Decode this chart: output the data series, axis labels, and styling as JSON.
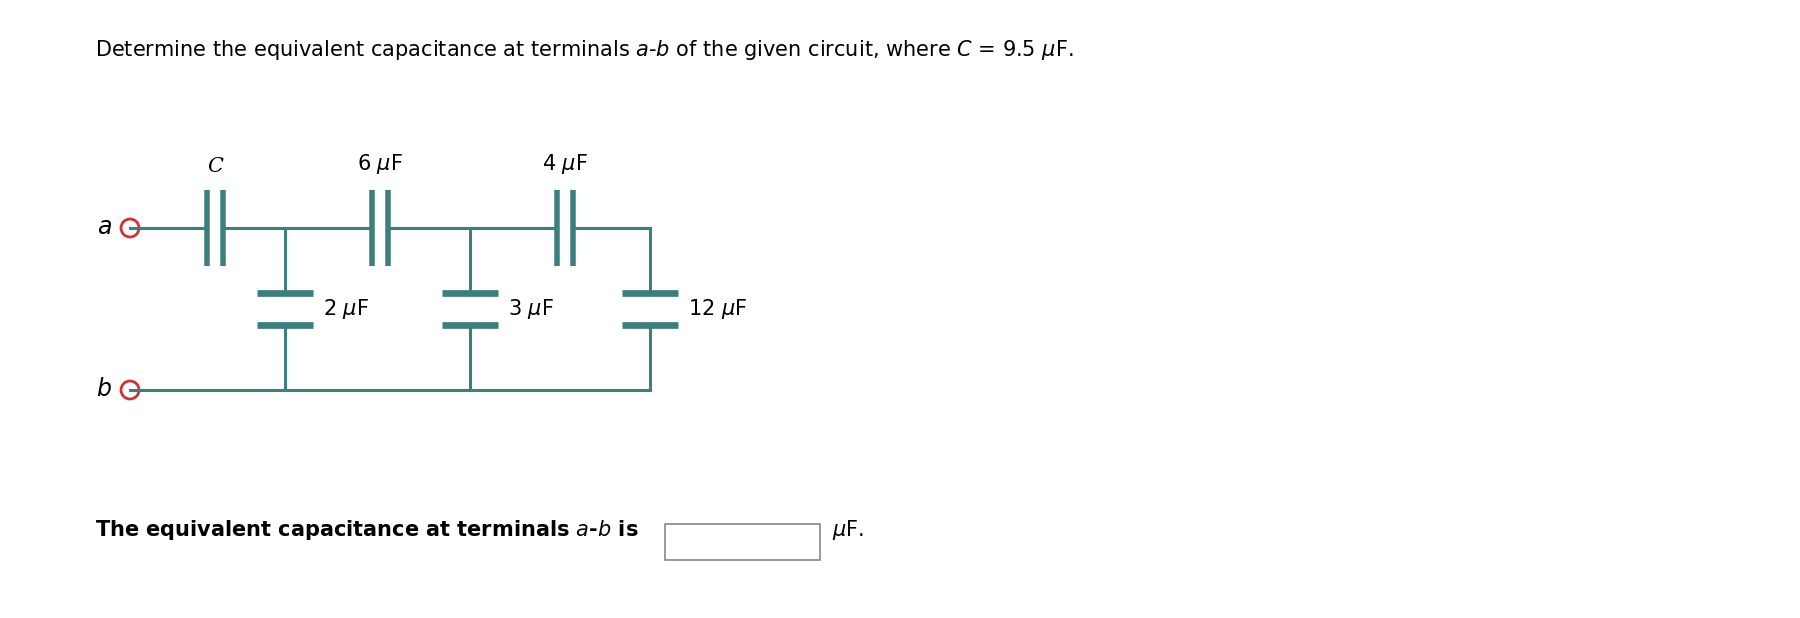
{
  "bg_color": "#ffffff",
  "circuit_color": "#3d7f7f",
  "circle_color": "#cc3333",
  "title_line": "Determine the equivalent capacitance at terminals $a$-$b$ of the given circuit, where $C$ = 9.5 $\\mu$F.",
  "bottom_text": "The equivalent capacitance at terminals $a$-$b$ is",
  "bottom_unit": "$\\mu$F.",
  "label_C": "C",
  "label_6uF": "6 $\\mu$F",
  "label_4uF": "4 $\\mu$F",
  "label_2uF": "2 $\\mu$F",
  "label_3uF": "3 $\\mu$F",
  "label_12uF": "12 $\\mu$F",
  "figsize": [
    18.0,
    6.18
  ],
  "dpi": 100,
  "title_fs": 15,
  "label_fs": 15,
  "terminal_fs": 17
}
